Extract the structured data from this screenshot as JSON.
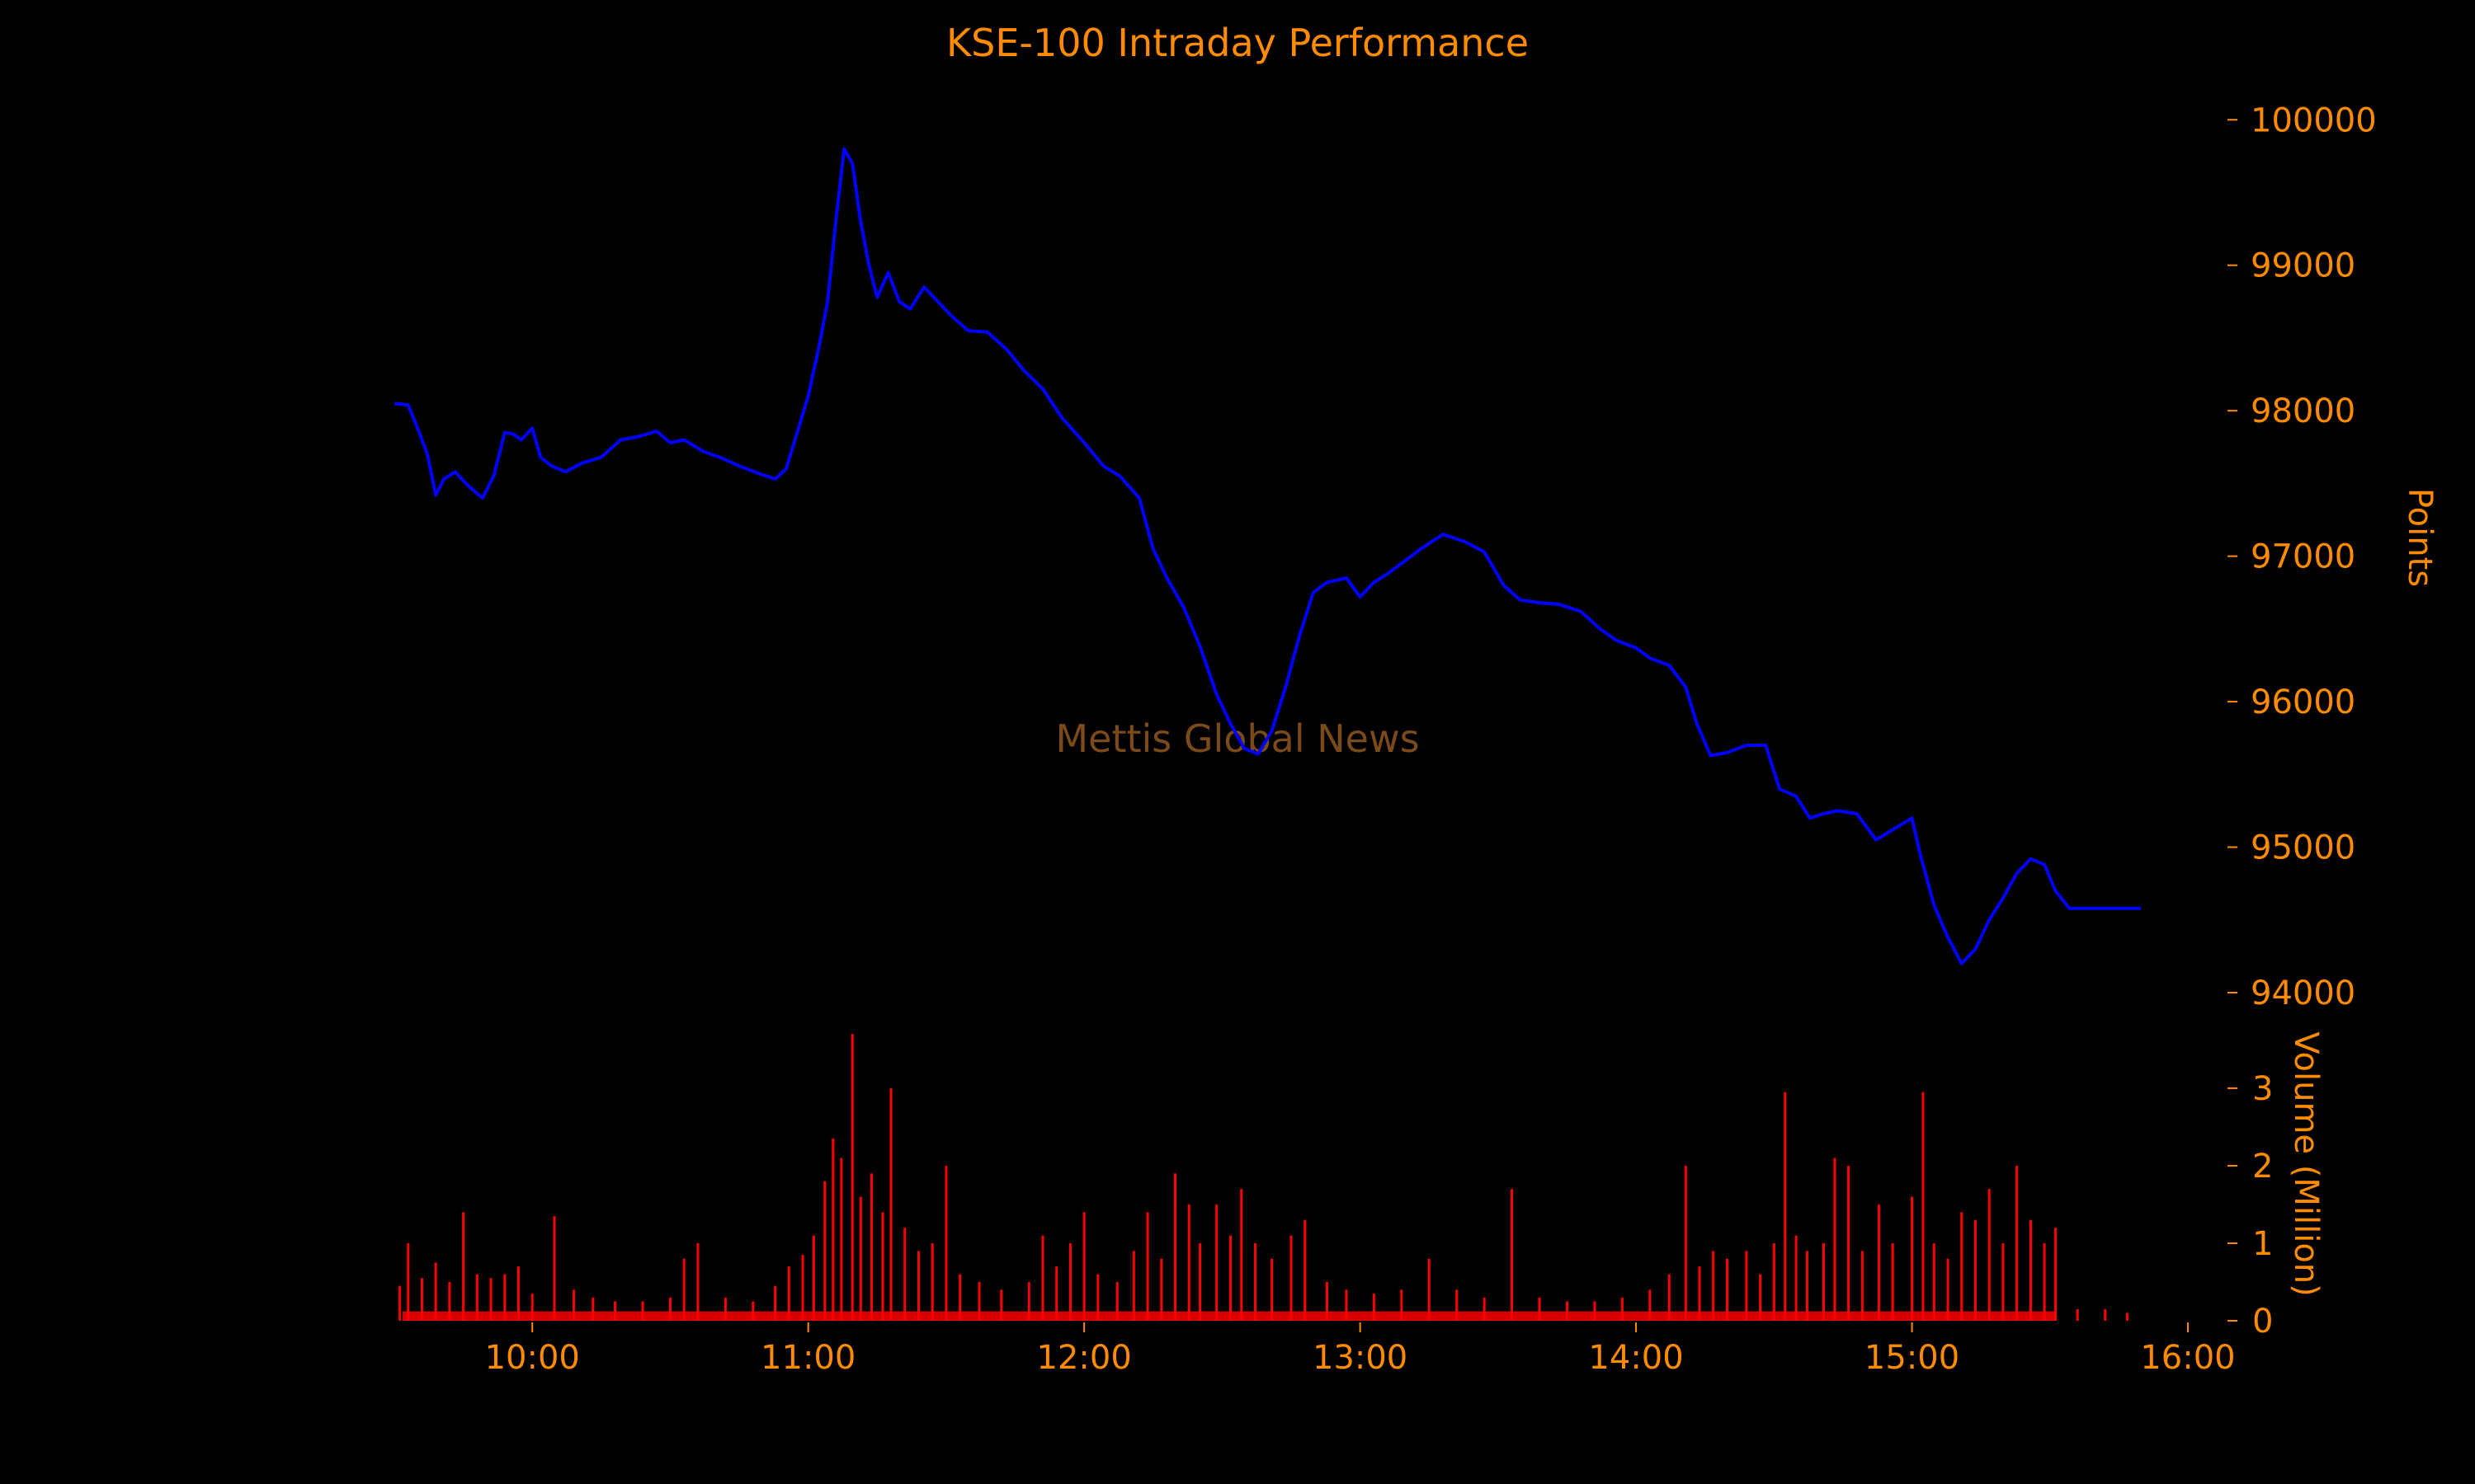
{
  "chart_data": {
    "type": "line",
    "title": "KSE-100 Intraday Performance",
    "watermark": "Mettis Global News",
    "price_axis": {
      "label": "Points",
      "ticks": [
        94000,
        95000,
        96000,
        97000,
        98000,
        99000,
        100000
      ],
      "tick_labels": [
        "94000",
        "95000",
        "96000",
        "97000",
        "98000",
        "99000",
        "100000"
      ],
      "range": [
        94000,
        100200
      ]
    },
    "volume_axis": {
      "label": "Volume (Million)",
      "ticks": [
        0,
        1,
        2,
        3
      ],
      "tick_labels": [
        "0",
        "1",
        "2",
        "3"
      ],
      "range": [
        0,
        3.85
      ]
    },
    "time_axis": {
      "ticks": [
        "10:00",
        "11:00",
        "12:00",
        "13:00",
        "14:00",
        "15:00",
        "16:00"
      ],
      "tick_hours": [
        10,
        11,
        12,
        13,
        14,
        15,
        16
      ],
      "range_hours": [
        9.5,
        16.0
      ]
    },
    "series": [
      {
        "name": "",
        "kind": "price",
        "color": "#0000ff",
        "points": [
          [
            9.5,
            98050
          ],
          [
            9.55,
            98040
          ],
          [
            9.58,
            97900
          ],
          [
            9.62,
            97700
          ],
          [
            9.65,
            97420
          ],
          [
            9.68,
            97530
          ],
          [
            9.72,
            97580
          ],
          [
            9.77,
            97480
          ],
          [
            9.82,
            97400
          ],
          [
            9.86,
            97550
          ],
          [
            9.9,
            97850
          ],
          [
            9.93,
            97840
          ],
          [
            9.96,
            97800
          ],
          [
            10.0,
            97880
          ],
          [
            10.03,
            97680
          ],
          [
            10.07,
            97620
          ],
          [
            10.12,
            97580
          ],
          [
            10.18,
            97640
          ],
          [
            10.25,
            97680
          ],
          [
            10.32,
            97800
          ],
          [
            10.38,
            97820
          ],
          [
            10.45,
            97860
          ],
          [
            10.5,
            97780
          ],
          [
            10.55,
            97800
          ],
          [
            10.62,
            97720
          ],
          [
            10.68,
            97680
          ],
          [
            10.75,
            97620
          ],
          [
            10.82,
            97570
          ],
          [
            10.88,
            97530
          ],
          [
            10.92,
            97600
          ],
          [
            10.96,
            97850
          ],
          [
            11.0,
            98100
          ],
          [
            11.04,
            98450
          ],
          [
            11.07,
            98750
          ],
          [
            11.1,
            99300
          ],
          [
            11.13,
            99800
          ],
          [
            11.16,
            99700
          ],
          [
            11.19,
            99300
          ],
          [
            11.22,
            99000
          ],
          [
            11.25,
            98780
          ],
          [
            11.29,
            98950
          ],
          [
            11.33,
            98750
          ],
          [
            11.37,
            98700
          ],
          [
            11.42,
            98850
          ],
          [
            11.47,
            98750
          ],
          [
            11.52,
            98650
          ],
          [
            11.58,
            98550
          ],
          [
            11.65,
            98540
          ],
          [
            11.72,
            98420
          ],
          [
            11.78,
            98280
          ],
          [
            11.85,
            98150
          ],
          [
            11.92,
            97950
          ],
          [
            12.0,
            97780
          ],
          [
            12.07,
            97620
          ],
          [
            12.13,
            97550
          ],
          [
            12.2,
            97400
          ],
          [
            12.25,
            97050
          ],
          [
            12.3,
            96850
          ],
          [
            12.36,
            96650
          ],
          [
            12.42,
            96380
          ],
          [
            12.48,
            96050
          ],
          [
            12.53,
            95850
          ],
          [
            12.58,
            95680
          ],
          [
            12.63,
            95640
          ],
          [
            12.68,
            95800
          ],
          [
            12.73,
            96100
          ],
          [
            12.78,
            96450
          ],
          [
            12.83,
            96750
          ],
          [
            12.88,
            96820
          ],
          [
            12.95,
            96850
          ],
          [
            13.0,
            96720
          ],
          [
            13.05,
            96820
          ],
          [
            13.1,
            96880
          ],
          [
            13.15,
            96950
          ],
          [
            13.22,
            97050
          ],
          [
            13.3,
            97150
          ],
          [
            13.38,
            97100
          ],
          [
            13.45,
            97030
          ],
          [
            13.52,
            96800
          ],
          [
            13.58,
            96700
          ],
          [
            13.65,
            96680
          ],
          [
            13.72,
            96670
          ],
          [
            13.8,
            96620
          ],
          [
            13.87,
            96500
          ],
          [
            13.93,
            96420
          ],
          [
            14.0,
            96370
          ],
          [
            14.05,
            96300
          ],
          [
            14.12,
            96250
          ],
          [
            14.18,
            96100
          ],
          [
            14.22,
            95850
          ],
          [
            14.27,
            95630
          ],
          [
            14.33,
            95650
          ],
          [
            14.4,
            95700
          ],
          [
            14.47,
            95700
          ],
          [
            14.52,
            95400
          ],
          [
            14.58,
            95350
          ],
          [
            14.63,
            95200
          ],
          [
            14.68,
            95230
          ],
          [
            14.73,
            95250
          ],
          [
            14.8,
            95230
          ],
          [
            14.87,
            95050
          ],
          [
            14.93,
            95120
          ],
          [
            15.0,
            95200
          ],
          [
            15.03,
            94950
          ],
          [
            15.08,
            94600
          ],
          [
            15.13,
            94380
          ],
          [
            15.18,
            94200
          ],
          [
            15.23,
            94300
          ],
          [
            15.28,
            94500
          ],
          [
            15.33,
            94650
          ],
          [
            15.38,
            94820
          ],
          [
            15.43,
            94920
          ],
          [
            15.48,
            94880
          ],
          [
            15.52,
            94700
          ],
          [
            15.57,
            94580
          ],
          [
            15.65,
            94580
          ],
          [
            15.75,
            94580
          ],
          [
            15.83,
            94580
          ]
        ]
      },
      {
        "name": "",
        "kind": "volume",
        "color": "#ff0000",
        "points": [
          [
            9.52,
            0.45
          ],
          [
            9.55,
            1.0
          ],
          [
            9.6,
            0.55
          ],
          [
            9.65,
            0.75
          ],
          [
            9.7,
            0.5
          ],
          [
            9.75,
            1.4
          ],
          [
            9.8,
            0.6
          ],
          [
            9.85,
            0.55
          ],
          [
            9.9,
            0.6
          ],
          [
            9.95,
            0.7
          ],
          [
            10.0,
            0.35
          ],
          [
            10.08,
            1.35
          ],
          [
            10.15,
            0.4
          ],
          [
            10.22,
            0.3
          ],
          [
            10.3,
            0.25
          ],
          [
            10.4,
            0.25
          ],
          [
            10.5,
            0.3
          ],
          [
            10.55,
            0.8
          ],
          [
            10.6,
            1.0
          ],
          [
            10.7,
            0.3
          ],
          [
            10.8,
            0.25
          ],
          [
            10.88,
            0.45
          ],
          [
            10.93,
            0.7
          ],
          [
            10.98,
            0.85
          ],
          [
            11.02,
            1.1
          ],
          [
            11.06,
            1.8
          ],
          [
            11.09,
            2.35
          ],
          [
            11.12,
            2.1
          ],
          [
            11.16,
            3.7
          ],
          [
            11.19,
            1.6
          ],
          [
            11.23,
            1.9
          ],
          [
            11.27,
            1.4
          ],
          [
            11.3,
            3.0
          ],
          [
            11.35,
            1.2
          ],
          [
            11.4,
            0.9
          ],
          [
            11.45,
            1.0
          ],
          [
            11.5,
            2.0
          ],
          [
            11.55,
            0.6
          ],
          [
            11.62,
            0.5
          ],
          [
            11.7,
            0.4
          ],
          [
            11.8,
            0.5
          ],
          [
            11.85,
            1.1
          ],
          [
            11.9,
            0.7
          ],
          [
            11.95,
            1.0
          ],
          [
            12.0,
            1.4
          ],
          [
            12.05,
            0.6
          ],
          [
            12.12,
            0.5
          ],
          [
            12.18,
            0.9
          ],
          [
            12.23,
            1.4
          ],
          [
            12.28,
            0.8
          ],
          [
            12.33,
            1.9
          ],
          [
            12.38,
            1.5
          ],
          [
            12.42,
            1.0
          ],
          [
            12.48,
            1.5
          ],
          [
            12.53,
            1.1
          ],
          [
            12.57,
            1.7
          ],
          [
            12.62,
            1.0
          ],
          [
            12.68,
            0.8
          ],
          [
            12.75,
            1.1
          ],
          [
            12.8,
            1.3
          ],
          [
            12.88,
            0.5
          ],
          [
            12.95,
            0.4
          ],
          [
            13.05,
            0.35
          ],
          [
            13.15,
            0.4
          ],
          [
            13.25,
            0.8
          ],
          [
            13.35,
            0.4
          ],
          [
            13.45,
            0.3
          ],
          [
            13.55,
            1.7
          ],
          [
            13.65,
            0.3
          ],
          [
            13.75,
            0.25
          ],
          [
            13.85,
            0.25
          ],
          [
            13.95,
            0.3
          ],
          [
            14.05,
            0.4
          ],
          [
            14.12,
            0.6
          ],
          [
            14.18,
            2.0
          ],
          [
            14.23,
            0.7
          ],
          [
            14.28,
            0.9
          ],
          [
            14.33,
            0.8
          ],
          [
            14.4,
            0.9
          ],
          [
            14.45,
            0.6
          ],
          [
            14.5,
            1.0
          ],
          [
            14.54,
            2.95
          ],
          [
            14.58,
            1.1
          ],
          [
            14.62,
            0.9
          ],
          [
            14.68,
            1.0
          ],
          [
            14.72,
            2.1
          ],
          [
            14.77,
            2.0
          ],
          [
            14.82,
            0.9
          ],
          [
            14.88,
            1.5
          ],
          [
            14.93,
            1.0
          ],
          [
            15.0,
            1.6
          ],
          [
            15.04,
            2.95
          ],
          [
            15.08,
            1.0
          ],
          [
            15.13,
            0.8
          ],
          [
            15.18,
            1.4
          ],
          [
            15.23,
            1.3
          ],
          [
            15.28,
            1.7
          ],
          [
            15.33,
            1.0
          ],
          [
            15.38,
            2.0
          ],
          [
            15.43,
            1.3
          ],
          [
            15.48,
            1.0
          ],
          [
            15.52,
            1.2
          ],
          [
            15.6,
            0.15
          ],
          [
            15.7,
            0.15
          ],
          [
            15.78,
            0.1
          ]
        ]
      }
    ],
    "grid": false,
    "legend": "none",
    "colors": {
      "background": "#000000",
      "text": "#ff8c00",
      "watermark": "#7a4a1a",
      "price_line": "#0000ff",
      "volume_bars": "#ff0000"
    }
  }
}
